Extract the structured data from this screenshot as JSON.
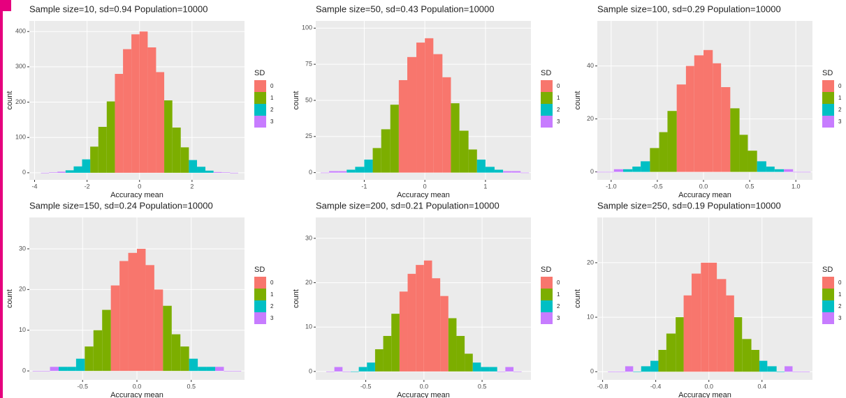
{
  "chart_data": [
    {
      "type": "histogram",
      "title": "Sample size=10, sd=0.94 Population=10000",
      "x_label": "Accuracy mean",
      "y_label": "count",
      "legend_title": "SD",
      "xlim": [
        -4.2,
        4.0
      ],
      "xticks": [
        -4,
        -2,
        0,
        2
      ],
      "ylim": [
        -20,
        430
      ],
      "yticks": [
        0,
        100,
        200,
        300,
        400
      ],
      "grid": true,
      "series": [
        {
          "name": "0",
          "color": "#F8766D",
          "bins": [
            -0.94,
            -0.63,
            -0.31,
            0,
            0.31,
            0.63,
            0.94
          ],
          "values": [
            280,
            350,
            392,
            400,
            355,
            285
          ]
        },
        {
          "name": "1",
          "color": "#7CAE00",
          "bins": [
            -1.88,
            -1.57,
            -1.25,
            -0.94,
            0.94,
            1.25,
            1.57,
            1.88
          ],
          "values": [
            74,
            130,
            202,
            null,
            205,
            128,
            72
          ]
        },
        {
          "name": "2",
          "color": "#00BFC4",
          "bins": [
            -2.82,
            -2.51,
            -2.19,
            -1.88,
            1.88,
            2.19,
            2.51,
            2.82
          ],
          "values": [
            7,
            18,
            38,
            null,
            36,
            17,
            6
          ]
        },
        {
          "name": "3",
          "color": "#C77CFF",
          "bins": [
            -3.76,
            -3.45,
            -3.13,
            -2.82,
            2.82,
            3.13,
            3.45,
            3.76
          ],
          "values": [
            0,
            1,
            3,
            null,
            2,
            1,
            0
          ]
        }
      ]
    },
    {
      "type": "histogram",
      "title": "Sample size=50, sd=0.43 Population=10000",
      "x_label": "Accuracy mean",
      "y_label": "count",
      "legend_title": "SD",
      "xlim": [
        -1.8,
        1.75
      ],
      "xticks": [
        -1,
        0,
        1
      ],
      "ylim": [
        -5,
        105
      ],
      "yticks": [
        0,
        25,
        50,
        75,
        100
      ],
      "grid": true,
      "series": [
        {
          "name": "0",
          "color": "#F8766D",
          "bins": [
            -0.43,
            -0.29,
            -0.14,
            0,
            0.14,
            0.29,
            0.43
          ],
          "values": [
            64,
            80,
            90,
            93,
            82,
            66
          ]
        },
        {
          "name": "1",
          "color": "#7CAE00",
          "bins": [
            -0.86,
            -0.72,
            -0.57,
            -0.43,
            0.43,
            0.57,
            0.72,
            0.86
          ],
          "values": [
            17,
            30,
            47,
            null,
            48,
            29,
            16
          ]
        },
        {
          "name": "2",
          "color": "#00BFC4",
          "bins": [
            -1.29,
            -1.15,
            -1.0,
            -0.86,
            0.86,
            1.0,
            1.15,
            1.29
          ],
          "values": [
            2,
            4,
            9,
            null,
            9,
            4,
            2
          ]
        },
        {
          "name": "3",
          "color": "#C77CFF",
          "bins": [
            -1.72,
            -1.58,
            -1.43,
            -1.29,
            1.29,
            1.43,
            1.58,
            1.72
          ],
          "values": [
            0,
            1,
            1,
            null,
            1,
            1,
            0
          ]
        }
      ]
    },
    {
      "type": "histogram",
      "title": "Sample size=100, sd=0.29 Population=10000",
      "x_label": "Accuracy mean",
      "y_label": "count",
      "legend_title": "SD",
      "xlim": [
        -1.15,
        1.18
      ],
      "xticks": [
        {
          "value": -1,
          "label": "-1.0"
        },
        -0.5,
        {
          "value": 0,
          "label": "0.0"
        },
        0.5,
        {
          "value": 1,
          "label": "1.0"
        }
      ],
      "ylim": [
        -3,
        57
      ],
      "yticks": [
        0,
        20,
        40
      ],
      "grid": true,
      "series": [
        {
          "name": "0",
          "color": "#F8766D",
          "bins": [
            -0.29,
            -0.19,
            -0.1,
            0,
            0.1,
            0.19,
            0.29
          ],
          "values": [
            33,
            40,
            44,
            46,
            41,
            32
          ]
        },
        {
          "name": "1",
          "color": "#7CAE00",
          "bins": [
            -0.58,
            -0.48,
            -0.39,
            -0.29,
            0.29,
            0.39,
            0.48,
            0.58
          ],
          "values": [
            9,
            15,
            23,
            null,
            24,
            14,
            8
          ]
        },
        {
          "name": "2",
          "color": "#00BFC4",
          "bins": [
            -0.87,
            -0.77,
            -0.68,
            -0.58,
            0.58,
            0.68,
            0.77,
            0.87
          ],
          "values": [
            1,
            2,
            4,
            null,
            4,
            2,
            1
          ]
        },
        {
          "name": "3",
          "color": "#C77CFF",
          "bins": [
            -1.16,
            -1.06,
            -0.97,
            -0.87,
            0.87,
            0.97,
            1.06,
            1.16
          ],
          "values": [
            0,
            0,
            1,
            null,
            1,
            0,
            0
          ]
        }
      ]
    },
    {
      "type": "histogram",
      "title": "Sample size=150, sd=0.24 Population=10000",
      "x_label": "Accuracy mean",
      "y_label": "count",
      "legend_title": "SD",
      "xlim": [
        -0.99,
        0.99
      ],
      "xticks": [
        -0.5,
        {
          "value": 0,
          "label": "0.0"
        },
        0.5
      ],
      "ylim": [
        -2.2,
        37.7
      ],
      "yticks": [
        0,
        10,
        20,
        30
      ],
      "grid": true,
      "series": [
        {
          "name": "0",
          "color": "#F8766D",
          "bins": [
            -0.24,
            -0.16,
            -0.08,
            0,
            0.08,
            0.16,
            0.24
          ],
          "values": [
            21,
            27,
            29,
            30,
            26,
            20
          ]
        },
        {
          "name": "1",
          "color": "#7CAE00",
          "bins": [
            -0.48,
            -0.4,
            -0.32,
            -0.24,
            0.24,
            0.32,
            0.4,
            0.48
          ],
          "values": [
            6,
            10,
            15,
            null,
            16,
            9,
            6
          ]
        },
        {
          "name": "2",
          "color": "#00BFC4",
          "bins": [
            -0.72,
            -0.64,
            -0.56,
            -0.48,
            0.48,
            0.56,
            0.64,
            0.72
          ],
          "values": [
            1,
            1,
            3,
            null,
            3,
            1,
            1
          ]
        },
        {
          "name": "3",
          "color": "#C77CFF",
          "bins": [
            -0.96,
            -0.88,
            -0.8,
            -0.72,
            0.72,
            0.8,
            0.88,
            0.96
          ],
          "values": [
            0,
            0,
            1,
            null,
            1,
            0,
            0
          ]
        }
      ]
    },
    {
      "type": "histogram",
      "title": "Sample size=200, sd=0.21 Population=10000",
      "x_label": "Accuracy mean",
      "y_label": "count",
      "legend_title": "SD",
      "xlim": [
        -0.93,
        0.92
      ],
      "xticks": [
        -0.5,
        {
          "value": 0,
          "label": "0.0"
        },
        0.5
      ],
      "ylim": [
        -1.9,
        34.7
      ],
      "yticks": [
        0,
        10,
        20,
        30
      ],
      "grid": true,
      "series": [
        {
          "name": "0",
          "color": "#F8766D",
          "bins": [
            -0.21,
            -0.14,
            -0.07,
            0,
            0.07,
            0.14,
            0.21
          ],
          "values": [
            18,
            22,
            24,
            25,
            21,
            17
          ]
        },
        {
          "name": "1",
          "color": "#7CAE00",
          "bins": [
            -0.42,
            -0.35,
            -0.28,
            -0.21,
            0.21,
            0.28,
            0.35,
            0.42
          ],
          "values": [
            5,
            8,
            13,
            null,
            12,
            8,
            4
          ]
        },
        {
          "name": "2",
          "color": "#00BFC4",
          "bins": [
            -0.63,
            -0.56,
            -0.49,
            -0.42,
            0.42,
            0.49,
            0.56,
            0.63
          ],
          "values": [
            0,
            1,
            2,
            null,
            2,
            1,
            1
          ]
        },
        {
          "name": "3",
          "color": "#C77CFF",
          "bins": [
            -0.84,
            -0.77,
            -0.7,
            -0.63,
            0.63,
            0.7,
            0.77,
            0.84
          ],
          "values": [
            0,
            1,
            0,
            null,
            0,
            1,
            0
          ]
        }
      ]
    },
    {
      "type": "histogram",
      "title": "Sample size=250, sd=0.19 Population=10000",
      "x_label": "Accuracy mean",
      "y_label": "count",
      "legend_title": "SD",
      "xlim": [
        -0.84,
        0.78
      ],
      "xticks": [
        -0.8,
        -0.4,
        {
          "value": 0,
          "label": "0.0"
        },
        0.4
      ],
      "ylim": [
        -1.5,
        28.3
      ],
      "yticks": [
        0,
        10,
        20
      ],
      "grid": true,
      "series": [
        {
          "name": "0",
          "color": "#F8766D",
          "bins": [
            -0.19,
            -0.13,
            -0.06,
            0,
            0.06,
            0.13,
            0.19
          ],
          "values": [
            14,
            18,
            20,
            20,
            17,
            14
          ]
        },
        {
          "name": "1",
          "color": "#7CAE00",
          "bins": [
            -0.38,
            -0.32,
            -0.25,
            -0.19,
            0.19,
            0.25,
            0.32,
            0.38
          ],
          "values": [
            4,
            7,
            10,
            null,
            10,
            6,
            4
          ]
        },
        {
          "name": "2",
          "color": "#00BFC4",
          "bins": [
            -0.57,
            -0.51,
            -0.44,
            -0.38,
            0.38,
            0.44,
            0.51,
            0.57
          ],
          "values": [
            0,
            1,
            2,
            null,
            2,
            1,
            0
          ]
        },
        {
          "name": "3",
          "color": "#C77CFF",
          "bins": [
            -0.76,
            -0.7,
            -0.63,
            -0.57,
            0.57,
            0.63,
            0.7,
            0.76
          ],
          "values": [
            0,
            0,
            1,
            null,
            1,
            0,
            0
          ]
        }
      ]
    }
  ]
}
